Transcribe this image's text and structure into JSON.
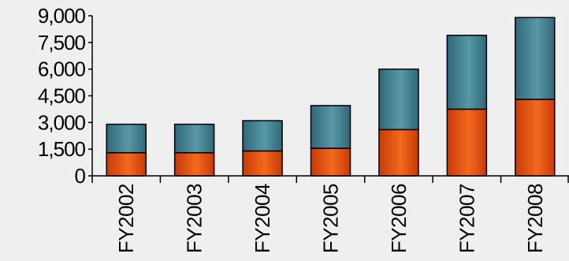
{
  "chart_data": {
    "type": "bar",
    "stacked": true,
    "categories": [
      "FY2002",
      "FY2003",
      "FY2004",
      "FY2005",
      "FY2006",
      "FY2007",
      "FY2008"
    ],
    "series": [
      {
        "values": [
          1300,
          1300,
          1400,
          1550,
          2600,
          3750,
          4300
        ]
      },
      {
        "values": [
          1600,
          1600,
          1700,
          2400,
          3400,
          4150,
          4600
        ]
      }
    ],
    "yticks": [
      "0",
      "1,500",
      "3,000",
      "4,500",
      "6,000",
      "7,500",
      "9,000"
    ],
    "ylim": [
      0,
      9000
    ],
    "title": "",
    "xlabel": "",
    "ylabel": "",
    "grid": false,
    "legend": "none",
    "colors": {
      "series_bottom_light": "#f36a1e",
      "series_bottom_dark": "#c83a08",
      "series_top_light": "#5898a8",
      "series_top_dark": "#2f6878",
      "axis": "#000000",
      "background": "#efefef"
    }
  }
}
